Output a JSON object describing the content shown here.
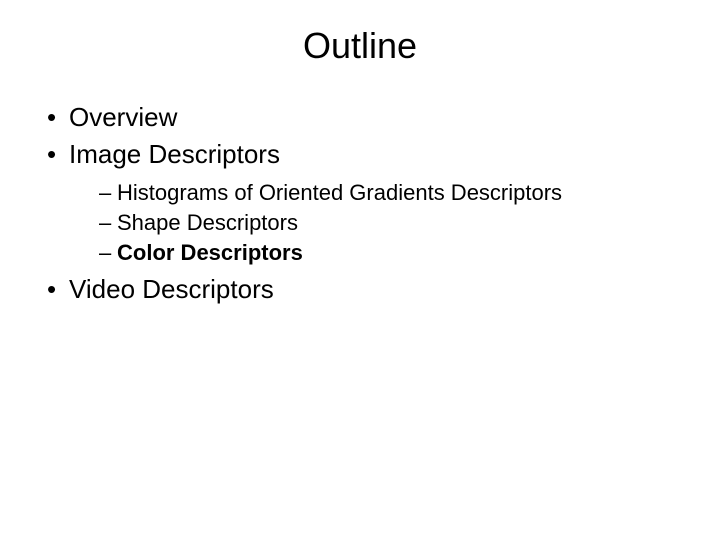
{
  "slide": {
    "title": "Outline",
    "title_fontsize": 36,
    "background_color": "#ffffff",
    "text_color": "#000000",
    "bullets": [
      {
        "text": "Overview",
        "bold": false,
        "children": []
      },
      {
        "text": "Image Descriptors",
        "bold": false,
        "children": [
          {
            "text": "Histograms of Oriented Gradients Descriptors",
            "bold": false
          },
          {
            "text": "Shape Descriptors",
            "bold": false
          },
          {
            "text": "Color Descriptors",
            "bold": true
          }
        ]
      },
      {
        "text": "Video Descriptors",
        "bold": false,
        "children": []
      }
    ],
    "level1_fontsize": 26,
    "level2_fontsize": 22
  }
}
